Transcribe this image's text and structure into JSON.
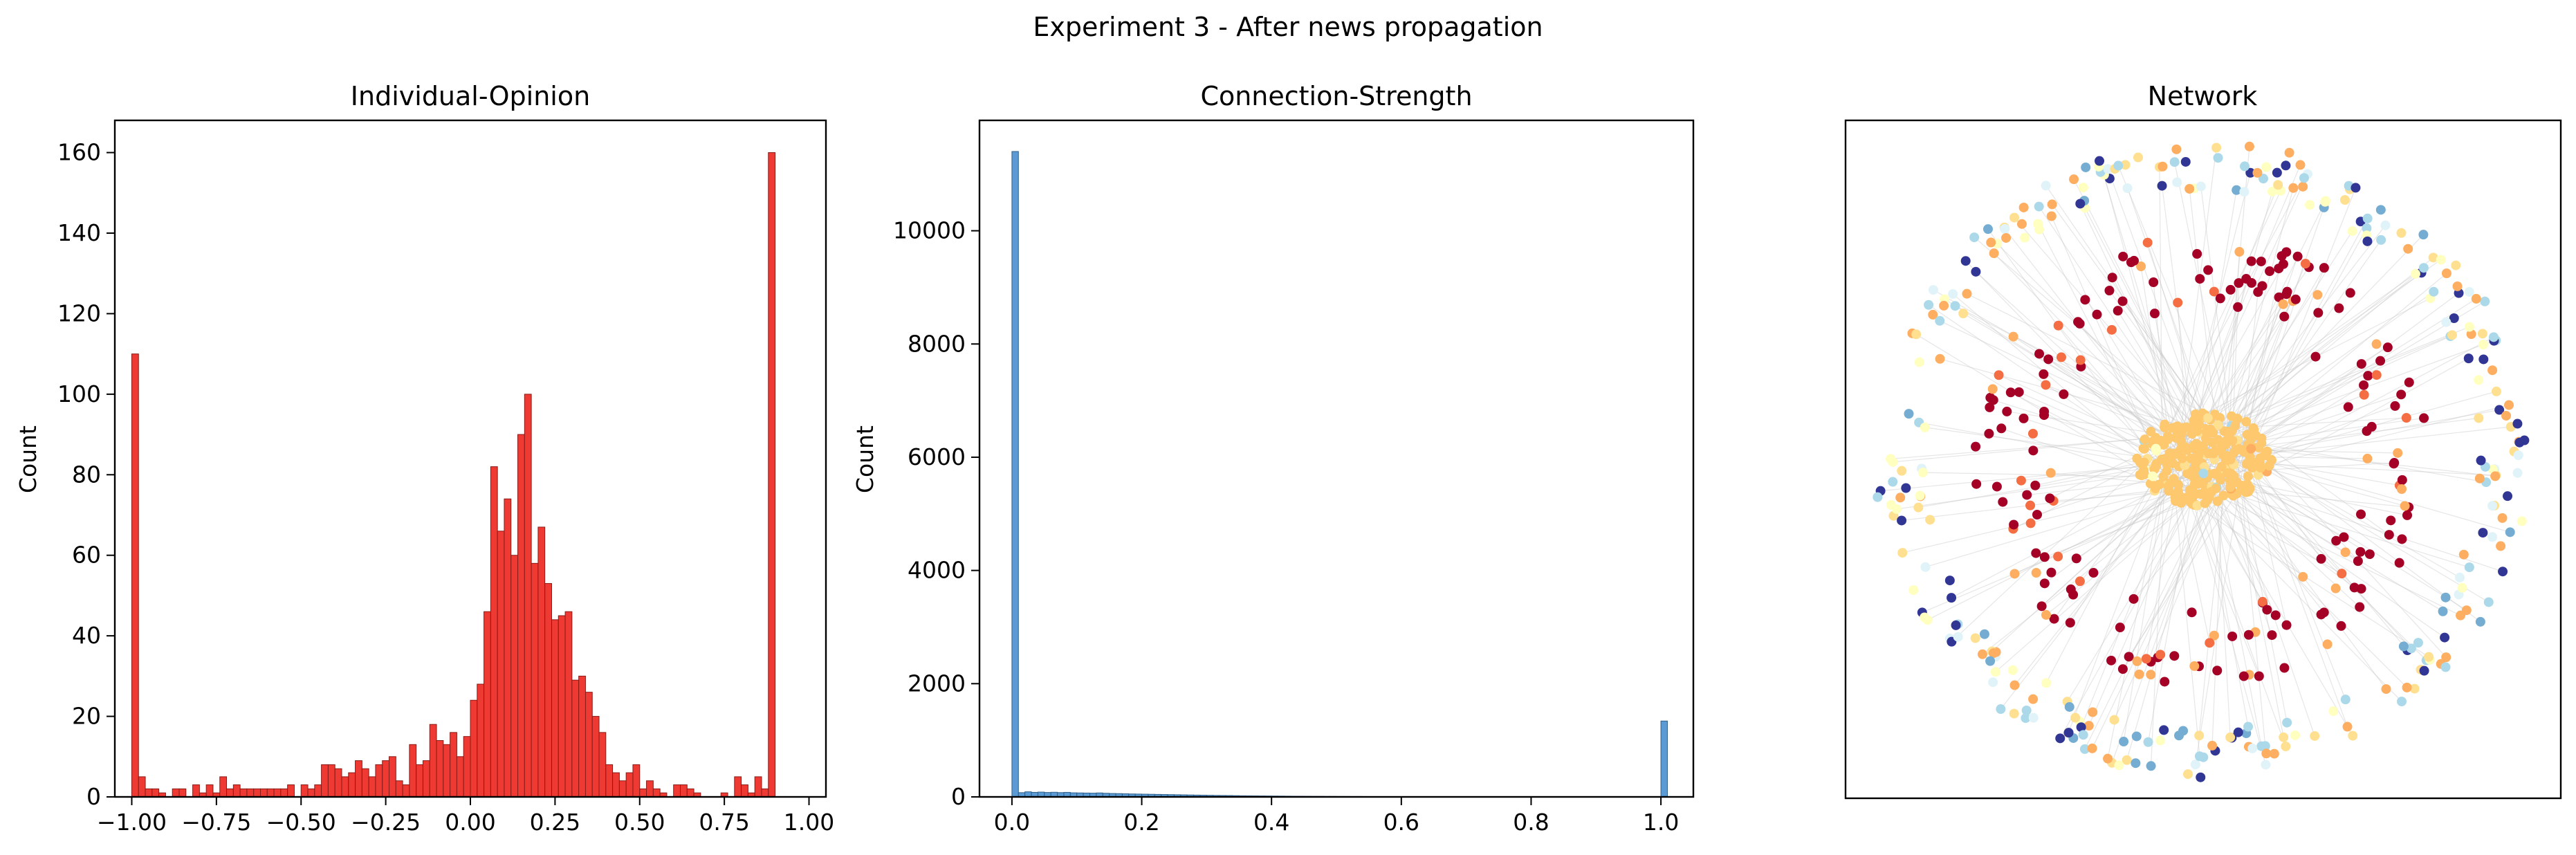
{
  "suptitle": "Experiment 3 - After news propagation",
  "chart_data": [
    {
      "type": "bar",
      "title": "Individual-Opinion",
      "xlabel": "",
      "ylabel": "Count",
      "xlim": [
        -1.05,
        1.05
      ],
      "ylim": [
        0,
        168
      ],
      "xticks": [
        -1.0,
        -0.75,
        -0.5,
        -0.25,
        0.0,
        0.25,
        0.5,
        0.75,
        1.0
      ],
      "xtick_labels": [
        "−1.00",
        "−0.75",
        "−0.50",
        "−0.25",
        "0.00",
        "0.25",
        "0.50",
        "0.75",
        "1.00"
      ],
      "yticks": [
        0,
        20,
        40,
        60,
        80,
        100,
        120,
        140,
        160
      ],
      "ytick_labels": [
        "0",
        "20",
        "40",
        "60",
        "80",
        "100",
        "120",
        "140",
        "160"
      ],
      "bins": {
        "start": -1.0,
        "width": 0.02
      },
      "counts": [
        110,
        5,
        2,
        2,
        1,
        0,
        2,
        2,
        0,
        3,
        1,
        3,
        1,
        5,
        2,
        3,
        2,
        2,
        2,
        2,
        2,
        2,
        2,
        3,
        0,
        3,
        2,
        3,
        8,
        8,
        7,
        5,
        6,
        9,
        7,
        5,
        8,
        9,
        10,
        4,
        3,
        13,
        8,
        9,
        18,
        14,
        13,
        16,
        10,
        15,
        24,
        28,
        46,
        82,
        66,
        74,
        60,
        90,
        100,
        58,
        67,
        53,
        44,
        45,
        46,
        29,
        30,
        26,
        20,
        16,
        8,
        6,
        4,
        6,
        8,
        2,
        4,
        2,
        1,
        0,
        3,
        3,
        2,
        1,
        0,
        0,
        0,
        1,
        0,
        5,
        3,
        1,
        5,
        2,
        160
      ],
      "style": {
        "bar_color": "#ee3a32",
        "edge_color": "#8a1a16"
      }
    },
    {
      "type": "bar",
      "title": "Connection-Strength",
      "xlabel": "",
      "ylabel": "Count",
      "xlim": [
        -0.05,
        1.05
      ],
      "ylim": [
        0,
        11950
      ],
      "xticks": [
        0.0,
        0.2,
        0.4,
        0.6,
        0.8,
        1.0
      ],
      "xtick_labels": [
        "0.0",
        "0.2",
        "0.4",
        "0.6",
        "0.8",
        "1.0"
      ],
      "yticks": [
        0,
        2000,
        4000,
        6000,
        8000,
        10000
      ],
      "ytick_labels": [
        "0",
        "2000",
        "4000",
        "6000",
        "8000",
        "10000"
      ],
      "bins": {
        "start": 0.0,
        "width": 0.01
      },
      "counts": [
        11400,
        75,
        90,
        80,
        85,
        78,
        82,
        76,
        80,
        72,
        70,
        68,
        66,
        70,
        64,
        60,
        58,
        55,
        52,
        50,
        48,
        46,
        44,
        42,
        40,
        38,
        36,
        34,
        32,
        30,
        28,
        26,
        25,
        24,
        22,
        20,
        19,
        18,
        17,
        16,
        15,
        14,
        13,
        12,
        12,
        11,
        10,
        10,
        9,
        9,
        8,
        8,
        7,
        7,
        6,
        6,
        6,
        5,
        5,
        5,
        5,
        4,
        4,
        4,
        4,
        3,
        3,
        3,
        3,
        3,
        2,
        2,
        2,
        2,
        2,
        2,
        2,
        1,
        1,
        1,
        1,
        1,
        1,
        1,
        1,
        1,
        1,
        1,
        0,
        0,
        0,
        0,
        0,
        0,
        0,
        0,
        0,
        0,
        0,
        0,
        1340
      ],
      "style": {
        "bar_color": "#5b9bd5",
        "edge_color": "#2f5f8a"
      }
    },
    {
      "type": "network",
      "title": "Network",
      "node_colors": [
        "#a50026",
        "#313695",
        "#74add1",
        "#abd9e9",
        "#e0f3f8",
        "#fee090",
        "#fdae61",
        "#f46d43",
        "#ffffbf"
      ],
      "edge_color": "#c8c8c8",
      "central_cluster_color": "#fdc86e"
    }
  ]
}
